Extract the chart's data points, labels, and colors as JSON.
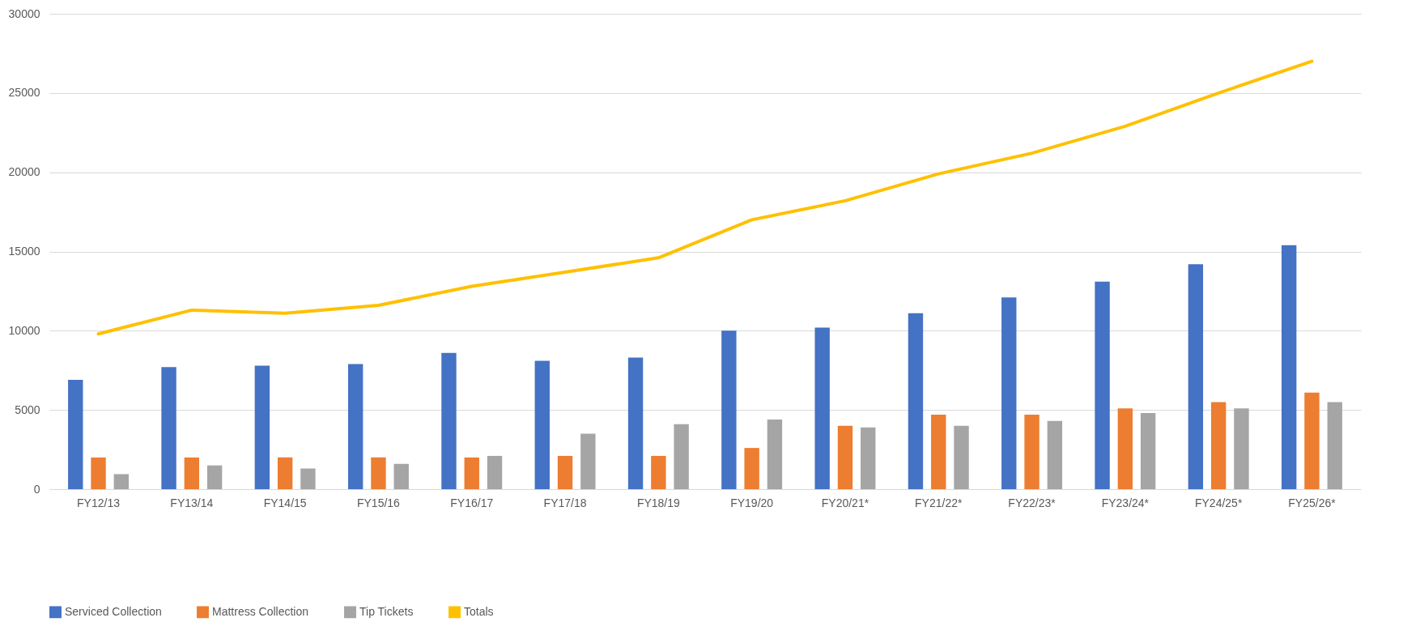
{
  "chart_data": {
    "type": "bar",
    "categories": [
      "FY12/13",
      "FY13/14",
      "FY14/15",
      "FY15/16",
      "FY16/17",
      "FY17/18",
      "FY18/19",
      "FY19/20",
      "FY20/21*",
      "FY21/22*",
      "FY22/23*",
      "FY23/24*",
      "FY24/25*",
      "FY25/26*"
    ],
    "series": [
      {
        "name": "Serviced Collection",
        "color": "#4472c4",
        "values": [
          6900,
          7700,
          7800,
          7900,
          8600,
          8100,
          8300,
          10000,
          10200,
          11100,
          12100,
          13100,
          14200,
          15400
        ]
      },
      {
        "name": "Mattress Collection",
        "color": "#ed7d31",
        "values": [
          2000,
          2000,
          2000,
          2000,
          2000,
          2100,
          2100,
          2600,
          4000,
          4700,
          4700,
          5100,
          5500,
          6100
        ]
      },
      {
        "name": "Tip Tickets",
        "color": "#a5a5a5",
        "values": [
          950,
          1500,
          1300,
          1600,
          2100,
          3500,
          4100,
          4400,
          3900,
          4000,
          4300,
          4800,
          5100,
          5500
        ]
      },
      {
        "name": "Totals",
        "color": "#ffc000",
        "type": "line",
        "values": [
          9800,
          11300,
          11100,
          11600,
          12800,
          13700,
          14600,
          17000,
          18200,
          19900,
          21200,
          22900,
          25000,
          27000
        ]
      }
    ],
    "ylim": [
      0,
      30000
    ],
    "yticks": [
      0,
      5000,
      10000,
      15000,
      20000,
      25000,
      30000
    ],
    "grid": "y",
    "legend": "bottom",
    "marker": "none",
    "line_style": "solid"
  }
}
